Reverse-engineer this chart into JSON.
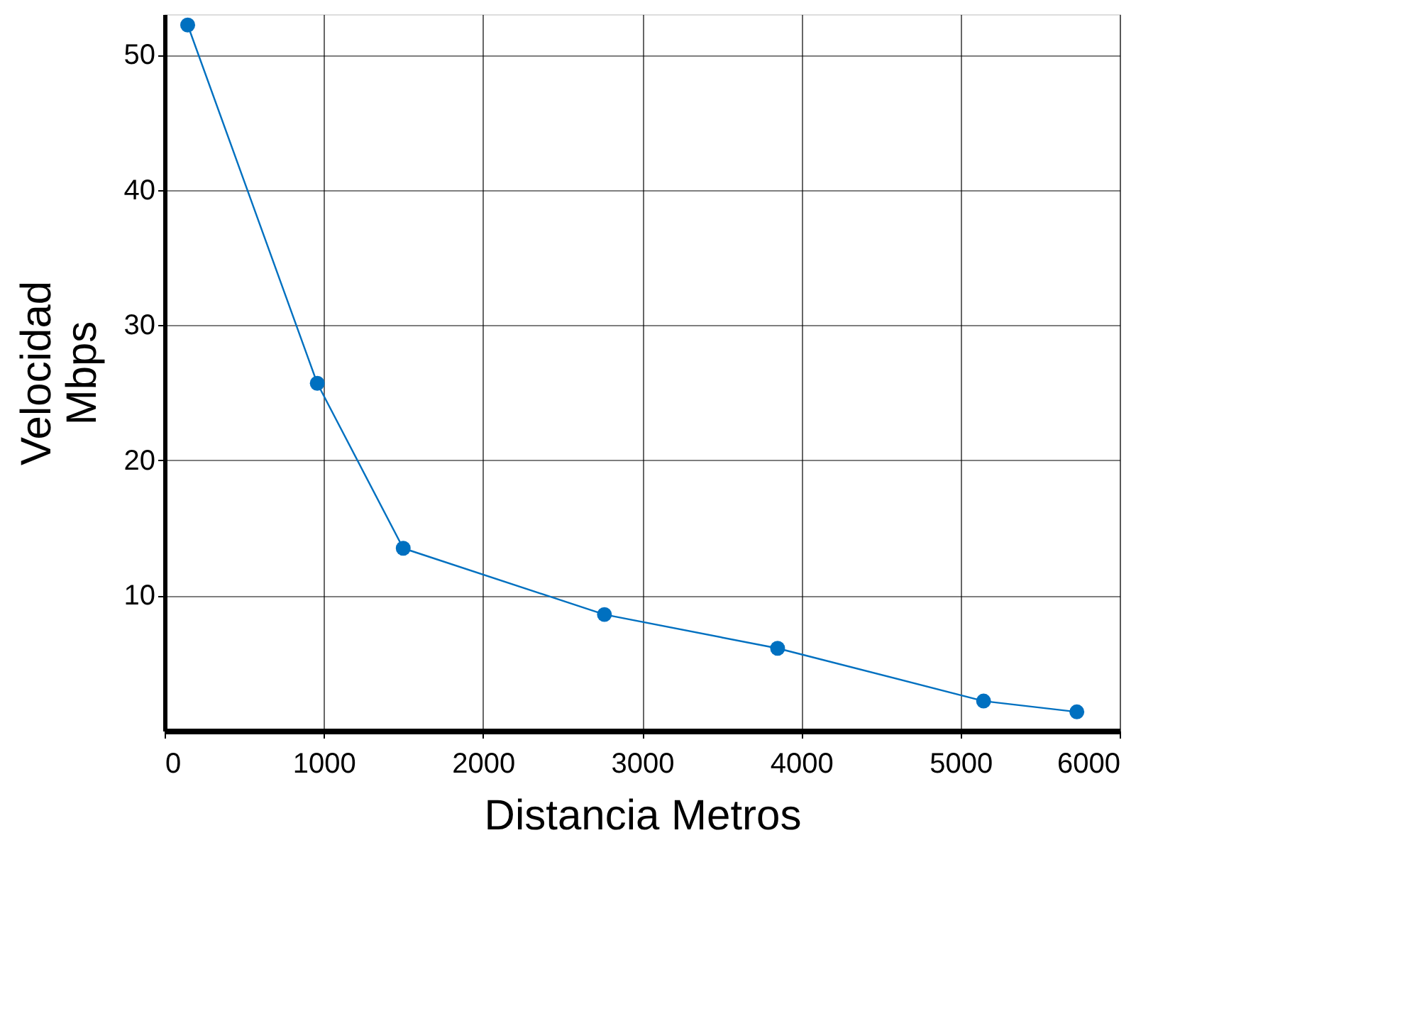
{
  "chart_data": {
    "type": "line",
    "xlabel": "Distancia Metros",
    "ylabel": "Velocidad\nMbps",
    "x": [
      145,
      959,
      1499,
      2763,
      3851,
      5145,
      5731
    ],
    "series": [
      {
        "color": "#0070c0",
        "values": [
          52.2,
          25.7,
          13.5,
          8.6,
          6.1,
          2.2,
          1.4
        ]
      }
    ],
    "xlim": [
      0,
      6000
    ],
    "ylim": [
      0,
      53
    ],
    "xticks": [
      0,
      1000,
      2000,
      3000,
      4000,
      5000,
      6000
    ],
    "yticks": [
      10,
      20,
      30,
      40,
      50
    ],
    "grid": true,
    "marker": "circle",
    "line_style": "solid"
  }
}
